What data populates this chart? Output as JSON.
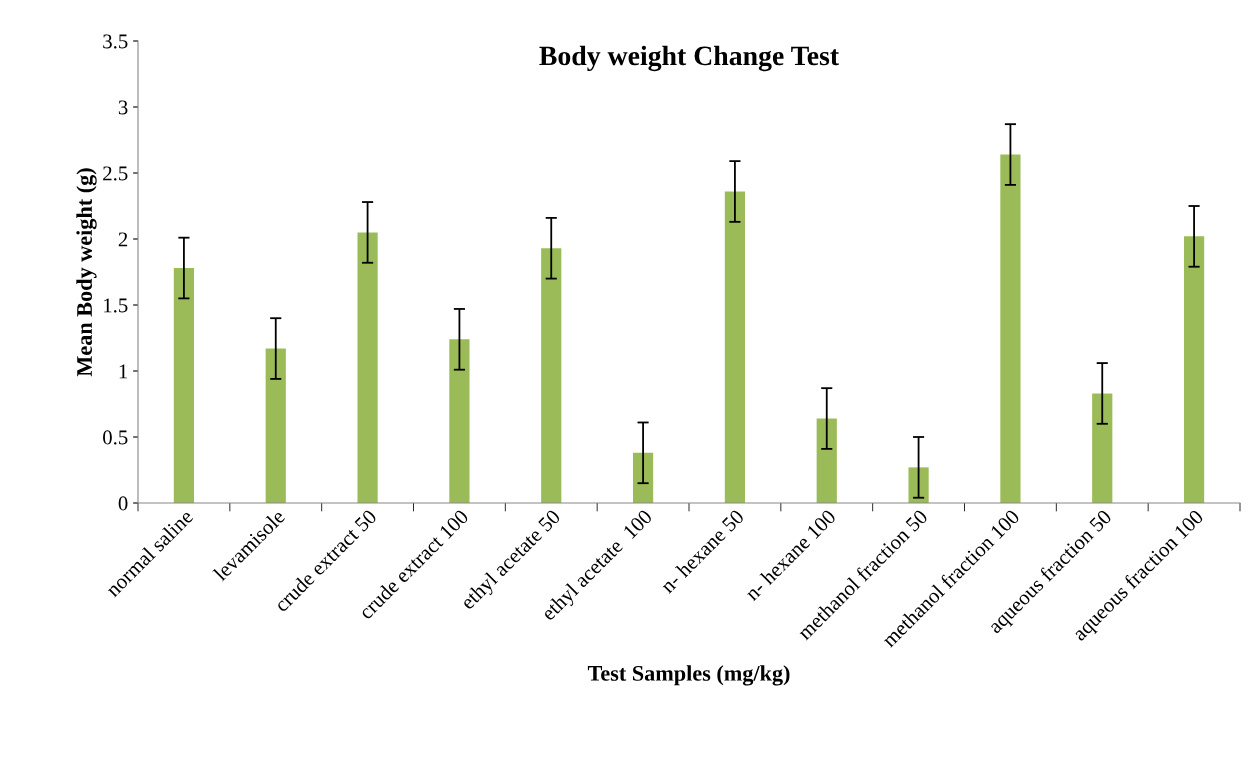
{
  "chart_data": {
    "type": "bar",
    "title": "Body weight Change Test",
    "xlabel": "Test Samples (mg/kg)",
    "ylabel": "Mean Body weight (g)",
    "categories": [
      "normal saline",
      "levamisole",
      "crude extract 50",
      "crude extract 100",
      "ethyl acetate 50",
      "ethyl acetate  100",
      "n- hexane 50",
      "n- hexane 100",
      "methanol fraction 50",
      "methanol fraction 100",
      "aqueous fraction 50",
      "aqueous fraction 100"
    ],
    "values": [
      1.78,
      1.17,
      2.05,
      1.24,
      1.93,
      0.38,
      2.36,
      0.64,
      0.27,
      2.64,
      0.83,
      2.02
    ],
    "errors": [
      0.23,
      0.23,
      0.23,
      0.23,
      0.23,
      0.23,
      0.23,
      0.23,
      0.23,
      0.23,
      0.23,
      0.23
    ],
    "color": "#9bbb59",
    "ylim": [
      0,
      3.5
    ],
    "yticks": [
      0,
      0.5,
      1,
      1.5,
      2,
      2.5,
      3,
      3.5
    ],
    "grid": false,
    "legend": false
  }
}
